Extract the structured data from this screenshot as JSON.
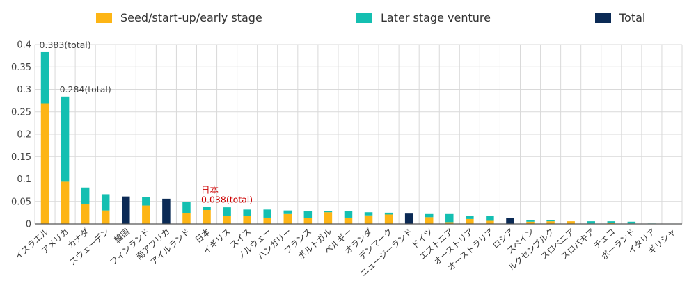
{
  "chart_data": {
    "type": "bar",
    "stacked": true,
    "ylim": [
      0,
      0.4
    ],
    "yticks": [
      "0",
      "0.05",
      "0.1",
      "0.15",
      "0.2",
      "0.25",
      "0.3",
      "0.35",
      "0.4"
    ],
    "grid": true,
    "legend_position": "top",
    "legend": [
      {
        "name": "Seed/start-up/early stage",
        "color": "#FDB515"
      },
      {
        "name": "Later stage venture",
        "color": "#14BFB1"
      },
      {
        "name": "Total",
        "color": "#0B2A55"
      }
    ],
    "categories": [
      "イスラエル",
      "アメリカ",
      "カナダ",
      "スウェーデン",
      "韓国",
      "フィンランド",
      "南アフリカ",
      "アイルランド",
      "日本",
      "イギリス",
      "スイス",
      "ノルウェー",
      "ハンガリー",
      "フランス",
      "ポルトガル",
      "ベルギー",
      "オランダ",
      "デンマーク",
      "ニュージーランド",
      "ドイツ",
      "エストニア",
      "オーストリア",
      "オーストラリア",
      "ロシア",
      "スペイン",
      "ルクセンブルク",
      "スロベニア",
      "スロバキア",
      "チェコ",
      "ポーランド",
      "イタリア",
      "ギリシャ"
    ],
    "series": [
      {
        "name": "Seed/start-up/early stage",
        "color": "#FDB515",
        "values": [
          0.269,
          0.094,
          0.045,
          0.03,
          null,
          0.041,
          null,
          0.024,
          0.031,
          0.018,
          0.018,
          0.014,
          0.022,
          0.013,
          0.026,
          0.014,
          0.019,
          0.021,
          null,
          0.015,
          0.004,
          0.011,
          0.007,
          null,
          0.005,
          0.006,
          0.006,
          0.001,
          0.002,
          0.001,
          0.0008,
          0.0005
        ]
      },
      {
        "name": "Later stage venture",
        "color": "#14BFB1",
        "values": [
          0.114,
          0.19,
          0.036,
          0.036,
          null,
          0.019,
          null,
          0.025,
          0.007,
          0.019,
          0.014,
          0.018,
          0.008,
          0.016,
          0.003,
          0.014,
          0.007,
          0.004,
          null,
          0.007,
          0.018,
          0.007,
          0.011,
          null,
          0.004,
          0.003,
          0.0,
          0.005,
          0.004,
          0.004,
          0.0002,
          0.0003
        ]
      },
      {
        "name": "Total",
        "color": "#0B2A55",
        "values": [
          null,
          null,
          null,
          null,
          0.061,
          null,
          0.056,
          null,
          null,
          null,
          null,
          null,
          null,
          null,
          null,
          null,
          null,
          null,
          0.023,
          null,
          null,
          null,
          null,
          0.013,
          null,
          null,
          null,
          null,
          null,
          null,
          null,
          null
        ]
      }
    ],
    "annotations": [
      {
        "category": "イスラエル",
        "lines": [
          "0.383(total)"
        ],
        "color": "#444444"
      },
      {
        "category": "アメリカ",
        "lines": [
          "0.284(total)"
        ],
        "color": "#444444"
      },
      {
        "category": "日本",
        "lines": [
          "日本",
          "0.038(total)"
        ],
        "color": "#CC0000"
      }
    ]
  }
}
